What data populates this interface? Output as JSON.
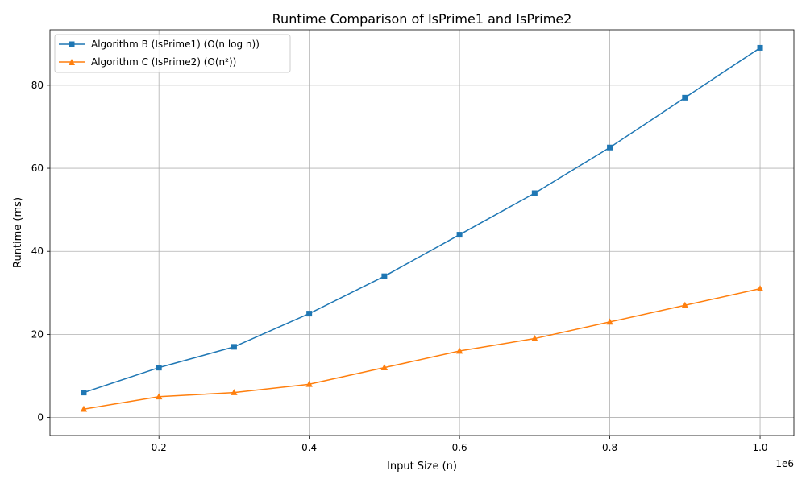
{
  "chart_data": {
    "type": "line",
    "title": "Runtime Comparison of IsPrime1 and IsPrime2",
    "xlabel": "Input Size (n)",
    "ylabel": "Runtime (ms)",
    "x_offset_text": "1e6",
    "x": [
      100000,
      200000,
      300000,
      400000,
      500000,
      600000,
      700000,
      800000,
      900000,
      1000000
    ],
    "xlim": [
      55000,
      1045000
    ],
    "ylim": [
      -4.35,
      93.35
    ],
    "x_ticks": [
      200000,
      400000,
      600000,
      800000,
      1000000
    ],
    "x_tick_labels": [
      "0.2",
      "0.4",
      "0.6",
      "0.8",
      "1.0"
    ],
    "y_ticks": [
      0,
      20,
      40,
      60,
      80
    ],
    "y_tick_labels": [
      "0",
      "20",
      "40",
      "60",
      "80"
    ],
    "grid": true,
    "legend_position": "top-left",
    "series": [
      {
        "name": "Algorithm B (IsPrime1) (O(n log n))",
        "color": "#1f77b4",
        "marker": "square",
        "values": [
          6,
          12,
          17,
          25,
          34,
          44,
          54,
          65,
          77,
          89
        ]
      },
      {
        "name": "Algorithm C (IsPrime2) (O(n²))",
        "color": "#ff7f0e",
        "marker": "triangle",
        "values": [
          2,
          5,
          6,
          8,
          12,
          16,
          19,
          23,
          27,
          31
        ]
      }
    ]
  }
}
